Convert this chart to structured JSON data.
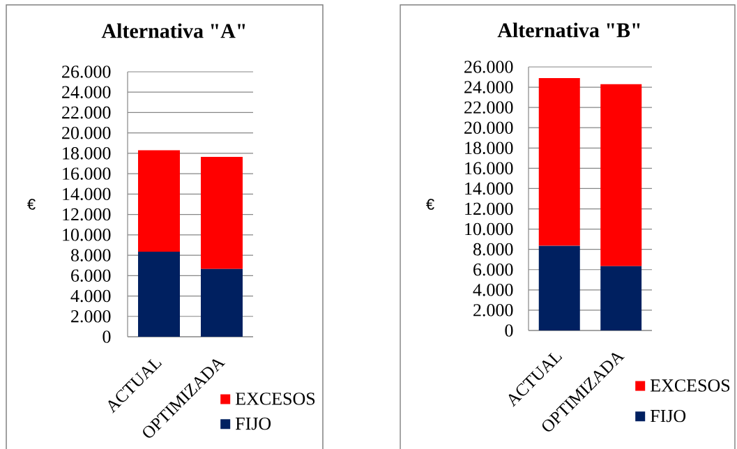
{
  "chart_data": [
    {
      "type": "bar",
      "title": "Alternativa \"A\"",
      "ylabel": "€",
      "categories": [
        "ACTUAL",
        "OPTIMIZADA"
      ],
      "stacked": true,
      "series": [
        {
          "name": "FIJO",
          "color": "#002060",
          "values": [
            8350,
            6650
          ]
        },
        {
          "name": "EXCESOS",
          "color": "#ff0000",
          "values": [
            9950,
            11000
          ]
        }
      ],
      "ylim": [
        0,
        26000
      ],
      "yticks": [
        0,
        {
          "value": 2000,
          "label": "2.000"
        },
        {
          "value": 4000,
          "label": "4.000"
        },
        {
          "value": 6000,
          "label": "6.000"
        },
        {
          "value": 8000,
          "label": "8.000"
        },
        {
          "value": 10000,
          "label": "10.000"
        },
        {
          "value": 12000,
          "label": "12.000"
        },
        {
          "value": 14000,
          "label": "14.000"
        },
        {
          "value": 16000,
          "label": "16.000"
        },
        {
          "value": 18000,
          "label": "18.000"
        },
        {
          "value": 20000,
          "label": "20.000"
        },
        {
          "value": 22000,
          "label": "22.000"
        },
        {
          "value": 24000,
          "label": "24.000"
        },
        {
          "value": 26000,
          "label": "26.000"
        }
      ],
      "grid": "y",
      "legend": "bottom right"
    },
    {
      "type": "bar",
      "title": "Alternativa \"B\"",
      "ylabel": "€",
      "categories": [
        "ACTUAL",
        "OPTIMIZADA"
      ],
      "stacked": true,
      "series": [
        {
          "name": "FIJO",
          "color": "#002060",
          "values": [
            8350,
            6350
          ]
        },
        {
          "name": "EXCESOS",
          "color": "#ff0000",
          "values": [
            16550,
            17950
          ]
        }
      ],
      "ylim": [
        0,
        26000
      ],
      "yticks": [
        0,
        {
          "value": 2000,
          "label": "2.000"
        },
        {
          "value": 4000,
          "label": "4.000"
        },
        {
          "value": 6000,
          "label": "6.000"
        },
        {
          "value": 8000,
          "label": "8.000"
        },
        {
          "value": 10000,
          "label": "10.000"
        },
        {
          "value": 12000,
          "label": "12.000"
        },
        {
          "value": 14000,
          "label": "14.000"
        },
        {
          "value": 16000,
          "label": "16.000"
        },
        {
          "value": 18000,
          "label": "18.000"
        },
        {
          "value": 20000,
          "label": "20.000"
        },
        {
          "value": 22000,
          "label": "22.000"
        },
        {
          "value": 24000,
          "label": "24.000"
        },
        {
          "value": 26000,
          "label": "26.000"
        }
      ],
      "grid": "y",
      "legend": "bottom right"
    }
  ]
}
